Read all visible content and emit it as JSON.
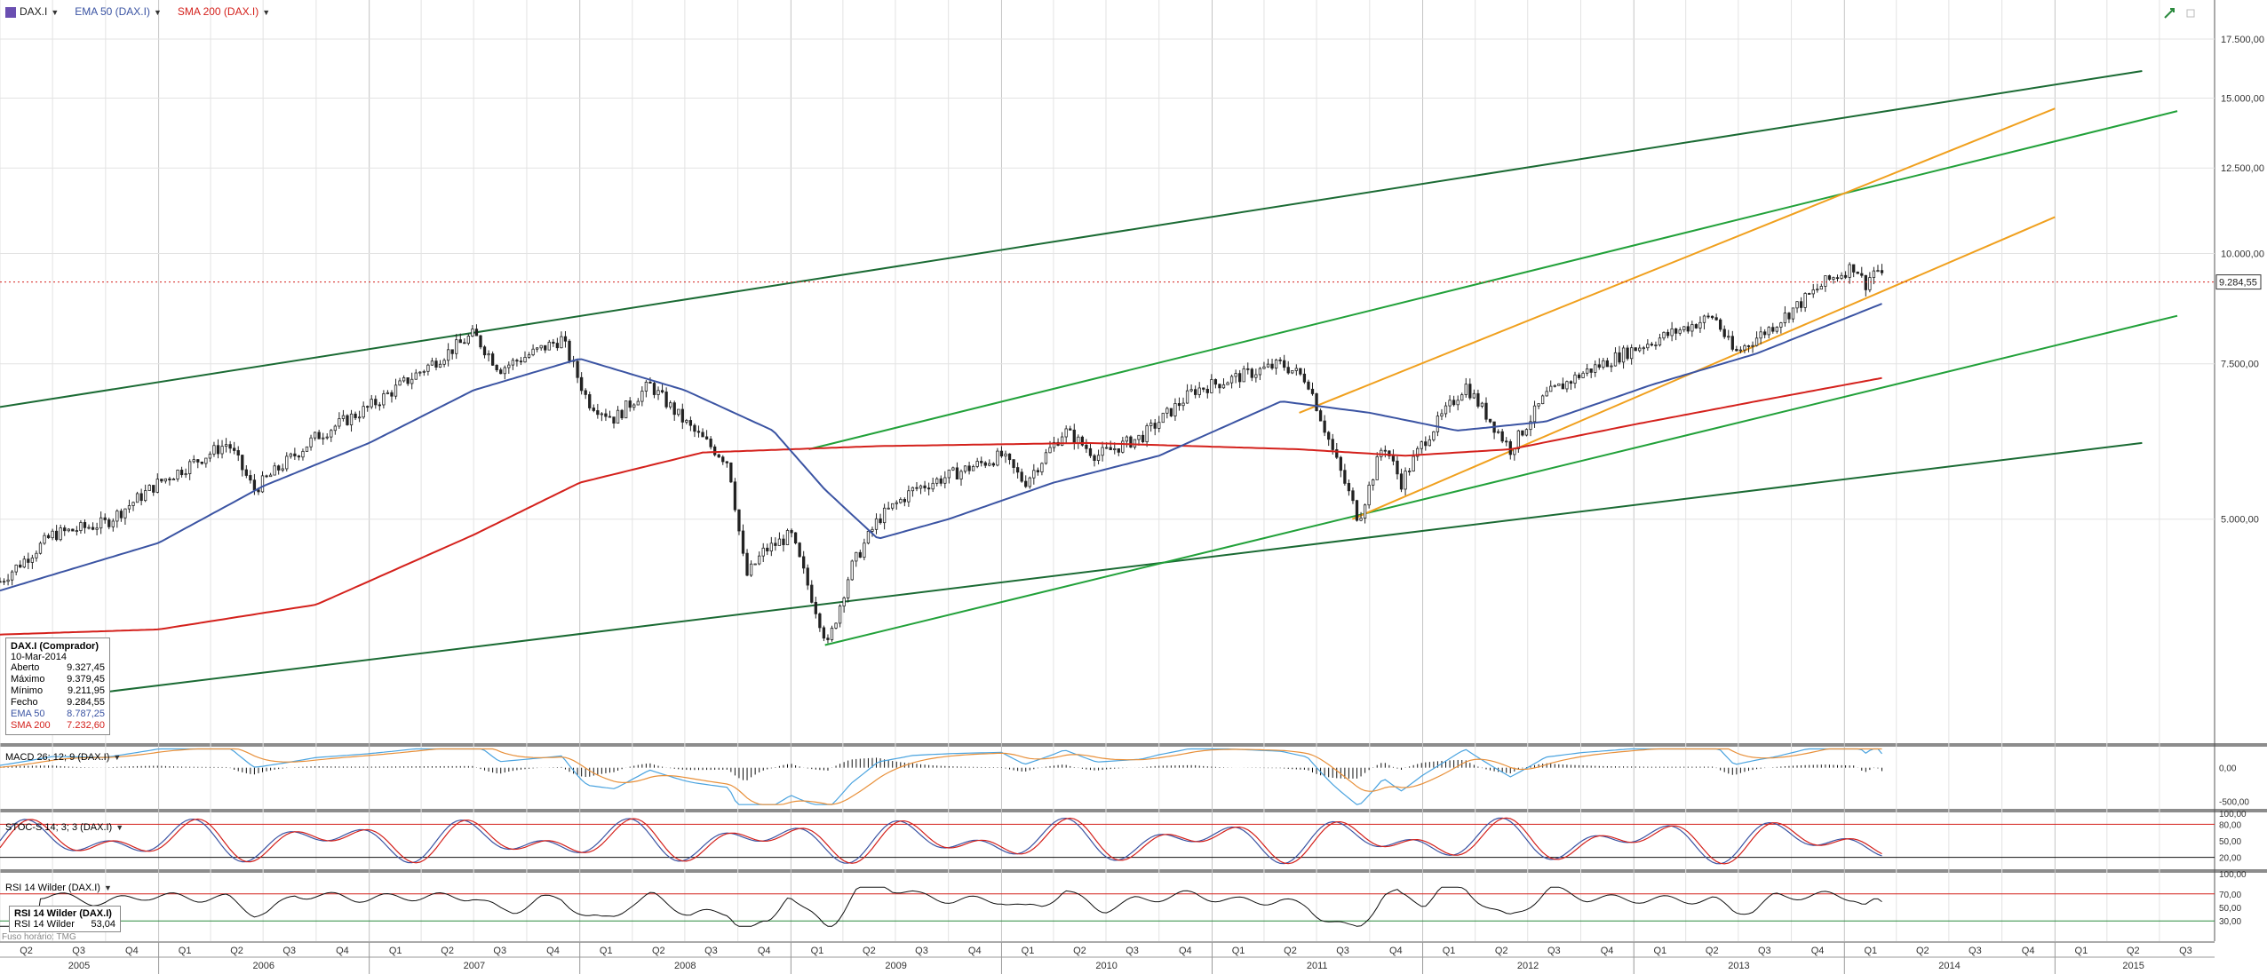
{
  "header": {
    "symbol": "DAX.I",
    "ema_label": "EMA 50 (DAX.I)",
    "sma_label": "SMA 200 (DAX.I)"
  },
  "info": {
    "title": "DAX.I (Comprador)",
    "date": "10-Mar-2014",
    "rows": [
      {
        "label": "Aberto",
        "value": "9.327,45"
      },
      {
        "label": "Máximo",
        "value": "9.379,45"
      },
      {
        "label": "Mínimo",
        "value": "9.211,95"
      },
      {
        "label": "Fecho",
        "value": "9.284,55"
      },
      {
        "label": "EMA 50",
        "value": "8.787,25"
      },
      {
        "label": "SMA 200",
        "value": "7.232,60"
      }
    ]
  },
  "macd_label": "MACD 26; 12; 9 (DAX.I)",
  "stoch_label": "STOC-S 14; 3; 3 (DAX.I)",
  "rsi_label": "RSI 14 Wilder (DAX.I)",
  "rsi_box": {
    "title": "RSI 14 Wilder (DAX.I)",
    "label": "RSI 14 Wilder",
    "value": "53,04"
  },
  "timezone": "Fuso horário: TMG",
  "colors": {
    "ema": "#3b54a3",
    "sma": "#d4211c",
    "dark_channel": "#1b6b34",
    "green_channel": "#22a13a",
    "orange_channel": "#f0a01e",
    "up": "#2b8a3e",
    "down": "#c0392b"
  },
  "chart_data": [
    {
      "type": "candlestick",
      "title": "DAX.I",
      "y_scale": "log",
      "ylim": [
        2800,
        18500
      ],
      "xlim": [
        "2005-04-01",
        "2015-09-30"
      ],
      "y_ticks": [
        {
          "value": 5000,
          "label": "5.000,00"
        },
        {
          "value": 7500,
          "label": "7.500,00"
        },
        {
          "value": 10000,
          "label": "10.000,00"
        },
        {
          "value": 12500,
          "label": "12.500,00"
        },
        {
          "value": 15000,
          "label": "15.000,00"
        },
        {
          "value": 17500,
          "label": "17.500,00"
        }
      ],
      "last_price": {
        "value": 9284.55,
        "label": "9.284,55"
      },
      "close_path": [
        [
          "2005-04-01",
          4250
        ],
        [
          "2005-07-01",
          4800
        ],
        [
          "2005-10-01",
          4950
        ],
        [
          "2006-01-01",
          5500
        ],
        [
          "2006-05-01",
          6100
        ],
        [
          "2006-06-15",
          5400
        ],
        [
          "2006-10-01",
          6200
        ],
        [
          "2007-01-01",
          6700
        ],
        [
          "2007-07-01",
          8100
        ],
        [
          "2007-08-15",
          7400
        ],
        [
          "2007-12-01",
          8000
        ],
        [
          "2008-01-15",
          6800
        ],
        [
          "2008-03-01",
          6500
        ],
        [
          "2008-05-01",
          7100
        ],
        [
          "2008-07-15",
          6300
        ],
        [
          "2008-09-15",
          5800
        ],
        [
          "2008-10-15",
          4300
        ],
        [
          "2008-11-15",
          4600
        ],
        [
          "2009-01-01",
          4800
        ],
        [
          "2009-03-06",
          3600
        ],
        [
          "2009-04-15",
          4400
        ],
        [
          "2009-06-01",
          5000
        ],
        [
          "2009-08-01",
          5400
        ],
        [
          "2009-11-01",
          5700
        ],
        [
          "2010-01-01",
          5900
        ],
        [
          "2010-02-10",
          5500
        ],
        [
          "2010-04-20",
          6300
        ],
        [
          "2010-06-15",
          5900
        ],
        [
          "2010-09-01",
          6200
        ],
        [
          "2010-12-01",
          7000
        ],
        [
          "2011-05-01",
          7500
        ],
        [
          "2011-06-15",
          7200
        ],
        [
          "2011-08-01",
          5900
        ],
        [
          "2011-09-12",
          5000
        ],
        [
          "2011-10-25",
          6100
        ],
        [
          "2011-11-25",
          5500
        ],
        [
          "2012-01-01",
          6100
        ],
        [
          "2012-03-15",
          7100
        ],
        [
          "2012-06-01",
          6000
        ],
        [
          "2012-08-01",
          6900
        ],
        [
          "2012-10-01",
          7300
        ],
        [
          "2013-01-01",
          7800
        ],
        [
          "2013-05-20",
          8500
        ],
        [
          "2013-06-24",
          7700
        ],
        [
          "2013-09-01",
          8300
        ],
        [
          "2013-12-01",
          9300
        ],
        [
          "2014-01-20",
          9700
        ],
        [
          "2014-02-05",
          9200
        ],
        [
          "2014-02-25",
          9650
        ],
        [
          "2014-03-10",
          9284.55
        ]
      ],
      "ema50_path": [
        [
          "2005-04-01",
          4150
        ],
        [
          "2006-01-01",
          4700
        ],
        [
          "2006-07-01",
          5450
        ],
        [
          "2007-01-01",
          6100
        ],
        [
          "2007-07-01",
          7000
        ],
        [
          "2008-01-01",
          7600
        ],
        [
          "2008-07-01",
          7000
        ],
        [
          "2008-12-01",
          6300
        ],
        [
          "2009-03-01",
          5400
        ],
        [
          "2009-06-01",
          4750
        ],
        [
          "2009-10-01",
          5000
        ],
        [
          "2010-04-01",
          5500
        ],
        [
          "2010-10-01",
          5900
        ],
        [
          "2011-05-01",
          6800
        ],
        [
          "2011-10-01",
          6600
        ],
        [
          "2012-03-01",
          6300
        ],
        [
          "2012-08-01",
          6450
        ],
        [
          "2013-02-01",
          7100
        ],
        [
          "2013-08-01",
          7700
        ],
        [
          "2014-03-10",
          8787.25
        ]
      ],
      "sma200_path": [
        [
          "2005-04-01",
          3700
        ],
        [
          "2006-01-01",
          3750
        ],
        [
          "2006-10-01",
          4000
        ],
        [
          "2007-07-01",
          4800
        ],
        [
          "2008-01-01",
          5500
        ],
        [
          "2008-08-01",
          5950
        ],
        [
          "2009-06-01",
          6050
        ],
        [
          "2010-06-01",
          6100
        ],
        [
          "2011-06-01",
          6000
        ],
        [
          "2011-12-01",
          5900
        ],
        [
          "2012-06-01",
          6000
        ],
        [
          "2013-01-01",
          6400
        ],
        [
          "2013-08-01",
          6800
        ],
        [
          "2014-03-10",
          7232.6
        ]
      ],
      "trend_lines": [
        {
          "color": "dark",
          "from": [
            "2005-04-01",
            6700
          ],
          "to": [
            "2015-06-01",
            16100
          ]
        },
        {
          "color": "dark",
          "from": [
            "2005-08-01",
            3150
          ],
          "to": [
            "2015-06-01",
            6100
          ]
        },
        {
          "color": "green",
          "from": [
            "2009-02-01",
            6000
          ],
          "to": [
            "2015-08-01",
            14500
          ]
        },
        {
          "color": "green",
          "from": [
            "2009-03-01",
            3600
          ],
          "to": [
            "2015-08-01",
            8500
          ]
        },
        {
          "color": "orange",
          "from": [
            "2011-06-01",
            6600
          ],
          "to": [
            "2015-01-01",
            14600
          ]
        },
        {
          "color": "orange",
          "from": [
            "2011-09-01",
            5000
          ],
          "to": [
            "2015-01-01",
            11000
          ]
        }
      ]
    },
    {
      "type": "line",
      "title": "MACD 26; 12; 9 (DAX.I)",
      "ylim": [
        -600,
        300
      ],
      "y_ticks": [
        {
          "value": 0,
          "label": "0,00"
        },
        {
          "value": -500,
          "label": "-500,00"
        }
      ]
    },
    {
      "type": "line",
      "title": "STOC-S 14; 3; 3 (DAX.I)",
      "ylim": [
        0,
        100
      ],
      "y_ticks": [
        {
          "value": 100,
          "label": "100,00"
        },
        {
          "value": 80,
          "label": "80,00"
        },
        {
          "value": 50,
          "label": "50,00"
        },
        {
          "value": 20,
          "label": "20,00"
        }
      ]
    },
    {
      "type": "line",
      "title": "RSI 14 Wilder (DAX.I)",
      "ylim": [
        0,
        100
      ],
      "y_ticks": [
        {
          "value": 100,
          "label": "100,00"
        },
        {
          "value": 70,
          "label": "70,00"
        },
        {
          "value": 50,
          "label": "50,00"
        },
        {
          "value": 30,
          "label": "30,00"
        }
      ]
    }
  ],
  "x_axis": {
    "quarter_labels": [
      "Q2",
      "Q3",
      "Q4",
      "Q1",
      "Q2",
      "Q3",
      "Q4",
      "Q1",
      "Q2",
      "Q3",
      "Q4",
      "Q1",
      "Q2",
      "Q3",
      "Q4",
      "Q1",
      "Q2",
      "Q3",
      "Q4",
      "Q1",
      "Q2",
      "Q3",
      "Q4",
      "Q1",
      "Q2",
      "Q3",
      "Q4",
      "Q1",
      "Q2",
      "Q3",
      "Q4",
      "Q1",
      "Q2",
      "Q3",
      "Q4",
      "Q1",
      "Q2",
      "Q3",
      "Q4",
      "Q1",
      "Q2",
      "Q3"
    ],
    "years": [
      "2005",
      "2006",
      "2007",
      "2008",
      "2009",
      "2010",
      "2011",
      "2012",
      "2013",
      "2014",
      "2015"
    ]
  }
}
